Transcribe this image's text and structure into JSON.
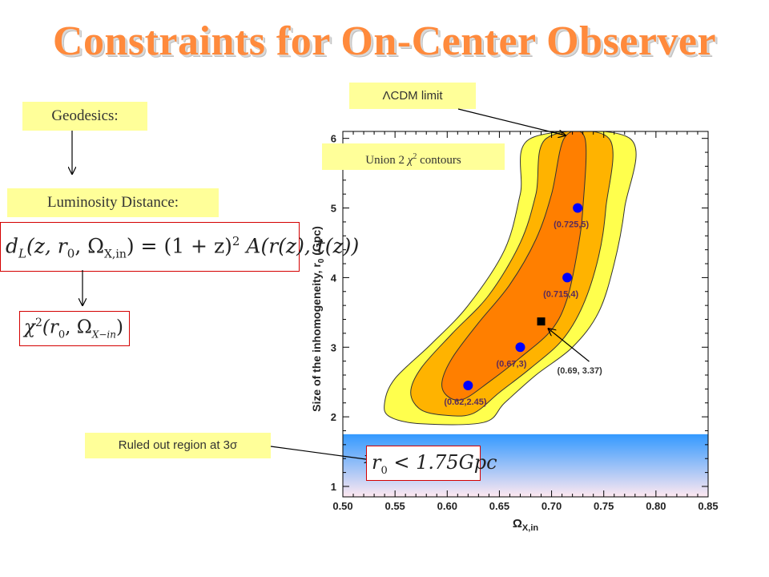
{
  "title": "Constraints for On-Center Observer",
  "labels": {
    "geodesics": "Geodesics:",
    "luminosity_distance": "Luminosity Distance:",
    "lcdm_limit": "ΛCDM limit",
    "union2_prefix": "Union 2 ",
    "union2_chi": "χ",
    "union2_sup": "2",
    "union2_suffix": " contours",
    "ruled_out": "Ruled out region at 3σ"
  },
  "equations": {
    "dl_lhs": "d",
    "dl_sub": "L",
    "dl_args": "(z, r",
    "dl_r0sub": "0",
    "dl_omega": ", Ω",
    "dl_omega_sub": "X,in",
    "dl_rhs": ") = (1 + z)",
    "dl_sq": "2",
    "dl_tail": " A(r(z), t(z))",
    "chi": "χ",
    "chi_sup": "2",
    "chi_args": "(r",
    "chi_r0sub": "0",
    "chi_omega": ", Ω",
    "chi_omega_sub": "X−in",
    "chi_close": ")",
    "cut_r": "r",
    "cut_sub": "0",
    "cut_rest": " < 1.75Gpc"
  },
  "colors": {
    "title": "#ff8a3c",
    "label_box": "#ffff99",
    "red_border": "#d40000",
    "contour_outer": "#ffff4d",
    "contour_mid": "#ffb300",
    "contour_inner": "#ff7f00",
    "point": "#0000ff",
    "excluded_top": "#3399ff",
    "excluded_bottom": "#ffe8f0"
  },
  "chart_data": {
    "type": "scatter",
    "xlabel": "Ω",
    "xlabel_sub": "X,in",
    "ylabel": "Size of the inhomogeneity, r",
    "ylabel_sub": "0",
    "ylabel_unit": " (Gpc)",
    "xlim": [
      0.5,
      0.85
    ],
    "ylim": [
      0.85,
      6.1
    ],
    "x_ticks": [
      "0.50",
      "0.55",
      "0.60",
      "0.65",
      "0.70",
      "0.75",
      "0.80",
      "0.85"
    ],
    "y_ticks": [
      "1",
      "2",
      "3",
      "4",
      "5",
      "6"
    ],
    "x_tick_values": [
      0.5,
      0.55,
      0.6,
      0.65,
      0.7,
      0.75,
      0.8,
      0.85
    ],
    "y_tick_values": [
      1,
      2,
      3,
      4,
      5,
      6
    ],
    "points": [
      {
        "x": 0.62,
        "y": 2.45,
        "label": "(0.62,2.45)"
      },
      {
        "x": 0.67,
        "y": 3.0,
        "label": "(0.67,3)"
      },
      {
        "x": 0.715,
        "y": 4.0,
        "label": "(0.715,4)"
      },
      {
        "x": 0.725,
        "y": 5.0,
        "label": "(0.725,5)"
      }
    ],
    "best_fit": {
      "x": 0.69,
      "y": 3.37,
      "label": "(0.69, 3.37)"
    },
    "excluded_region": {
      "y_max": 1.75
    },
    "contours": [
      {
        "name": "outer",
        "color": "#ffff4d",
        "right": [
          [
            0.635,
            1.92
          ],
          [
            0.655,
            2.2
          ],
          [
            0.685,
            2.6
          ],
          [
            0.72,
            3.0
          ],
          [
            0.745,
            3.5
          ],
          [
            0.76,
            4.2
          ],
          [
            0.77,
            5.0
          ],
          [
            0.775,
            6.0
          ]
        ],
        "left": [
          [
            0.68,
            6.0
          ],
          [
            0.67,
            5.2
          ],
          [
            0.655,
            4.4
          ],
          [
            0.62,
            3.6
          ],
          [
            0.585,
            3.05
          ],
          [
            0.55,
            2.55
          ],
          [
            0.54,
            2.2
          ],
          [
            0.545,
            2.0
          ],
          [
            0.575,
            1.9
          ]
        ]
      },
      {
        "name": "mid",
        "color": "#ffb300",
        "right": [
          [
            0.625,
            2.05
          ],
          [
            0.65,
            2.35
          ],
          [
            0.68,
            2.7
          ],
          [
            0.71,
            3.1
          ],
          [
            0.73,
            3.6
          ],
          [
            0.745,
            4.3
          ],
          [
            0.752,
            5.0
          ],
          [
            0.755,
            6.0
          ]
        ],
        "left": [
          [
            0.695,
            6.0
          ],
          [
            0.685,
            5.2
          ],
          [
            0.67,
            4.5
          ],
          [
            0.64,
            3.75
          ],
          [
            0.605,
            3.2
          ],
          [
            0.575,
            2.7
          ],
          [
            0.565,
            2.35
          ],
          [
            0.575,
            2.1
          ],
          [
            0.6,
            2.02
          ]
        ]
      },
      {
        "name": "inner",
        "color": "#ff7f00",
        "right": [
          [
            0.615,
            2.25
          ],
          [
            0.64,
            2.5
          ],
          [
            0.67,
            2.85
          ],
          [
            0.7,
            3.25
          ],
          [
            0.715,
            3.7
          ],
          [
            0.725,
            4.4
          ],
          [
            0.73,
            5.0
          ],
          [
            0.732,
            6.0
          ]
        ],
        "left": [
          [
            0.712,
            6.0
          ],
          [
            0.7,
            5.2
          ],
          [
            0.685,
            4.55
          ],
          [
            0.66,
            3.9
          ],
          [
            0.63,
            3.35
          ],
          [
            0.605,
            2.85
          ],
          [
            0.595,
            2.5
          ],
          [
            0.6,
            2.3
          ]
        ]
      }
    ]
  }
}
